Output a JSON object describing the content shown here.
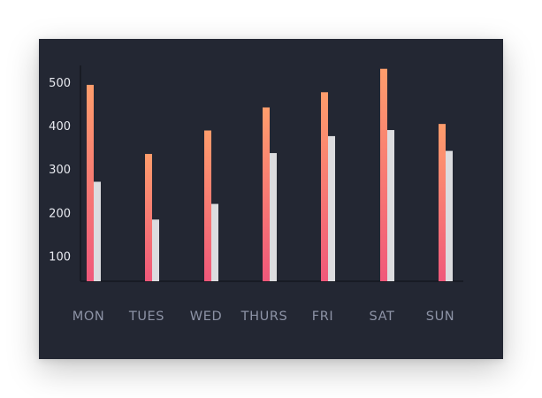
{
  "chart_data": {
    "type": "bar",
    "categories": [
      "MON",
      "TUES",
      "WED",
      "THURS",
      "FRI",
      "SAT",
      "SUN"
    ],
    "series": [
      {
        "values": [
          495,
          336,
          390,
          443,
          478,
          532,
          405
        ]
      },
      {
        "values": [
          272,
          185,
          221,
          338,
          377,
          391,
          343
        ]
      }
    ],
    "yticks": [
      100,
      200,
      300,
      400,
      500
    ],
    "ylim": [
      43,
      560
    ],
    "grid": false,
    "legend": "none",
    "colors": {
      "card_background": "#232733",
      "series_1_gradient_top": "#ff9d6c",
      "series_1_gradient_bottom": "#f0587a",
      "series_2_fill": "#dcdcdf",
      "axis_line": "#181b24",
      "y_tick_text": "#e7e9ef",
      "x_tick_text": "#8d93a6"
    }
  }
}
